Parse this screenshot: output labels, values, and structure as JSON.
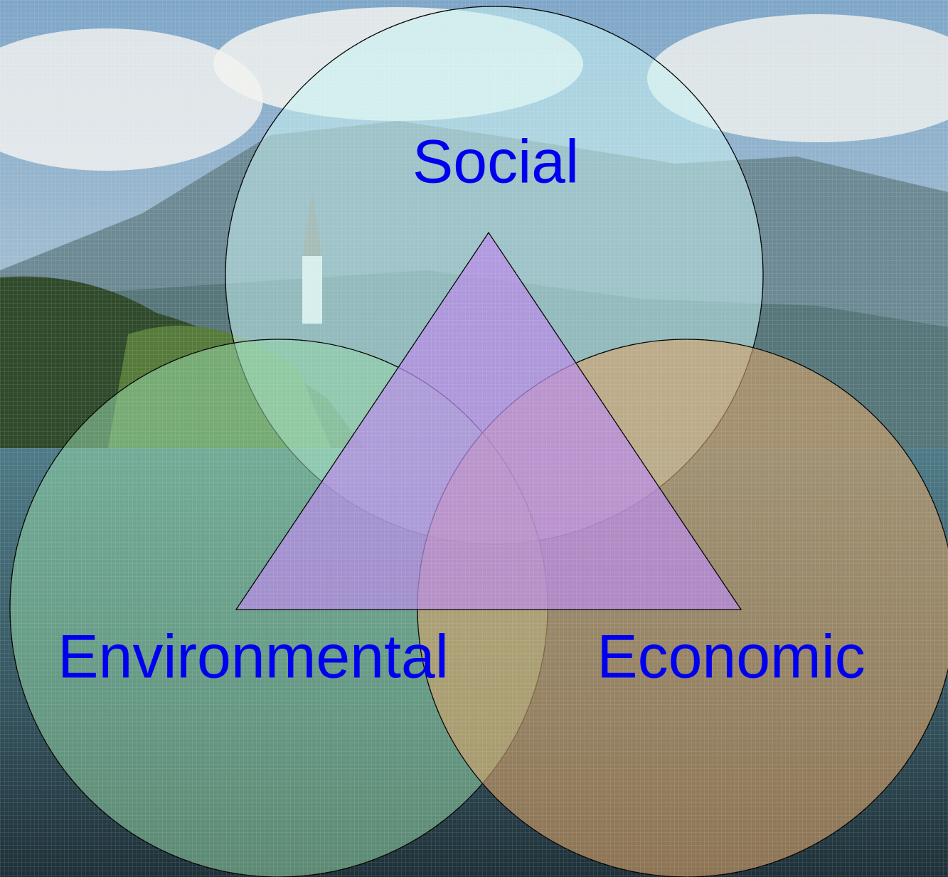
{
  "diagram": {
    "nodes": [
      {
        "label": "Social"
      },
      {
        "label": "Environmental"
      },
      {
        "label": "Economic"
      }
    ]
  }
}
